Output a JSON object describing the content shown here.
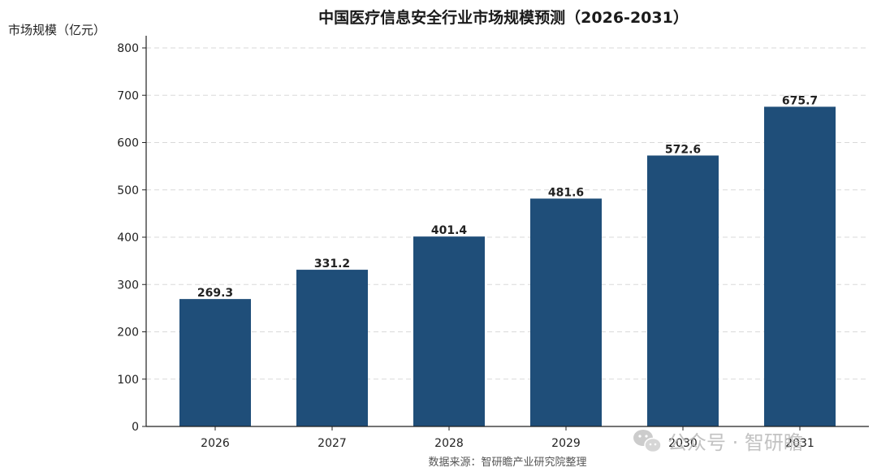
{
  "chart_data": {
    "type": "bar",
    "title": "中国医疗信息安全行业市场规模预测（2026-2031）",
    "ylabel": "市场规模（亿元）",
    "xlabel": "",
    "categories": [
      "2026",
      "2027",
      "2028",
      "2029",
      "2030",
      "2031"
    ],
    "values": [
      269.3,
      331.2,
      401.4,
      481.6,
      572.6,
      675.7
    ],
    "value_labels": [
      "269.3",
      "331.2",
      "401.4",
      "481.6",
      "572.6",
      "675.7"
    ],
    "ylim": [
      0,
      820
    ],
    "yticks": [
      0,
      100,
      200,
      300,
      400,
      500,
      600,
      700,
      800
    ],
    "grid": true,
    "bar_color": "#1f4e79",
    "source": "数据来源：智研瞻产业研究院整理"
  },
  "watermark": {
    "icon": "wechat-icon",
    "text": "公众号 · 智研瞻"
  }
}
